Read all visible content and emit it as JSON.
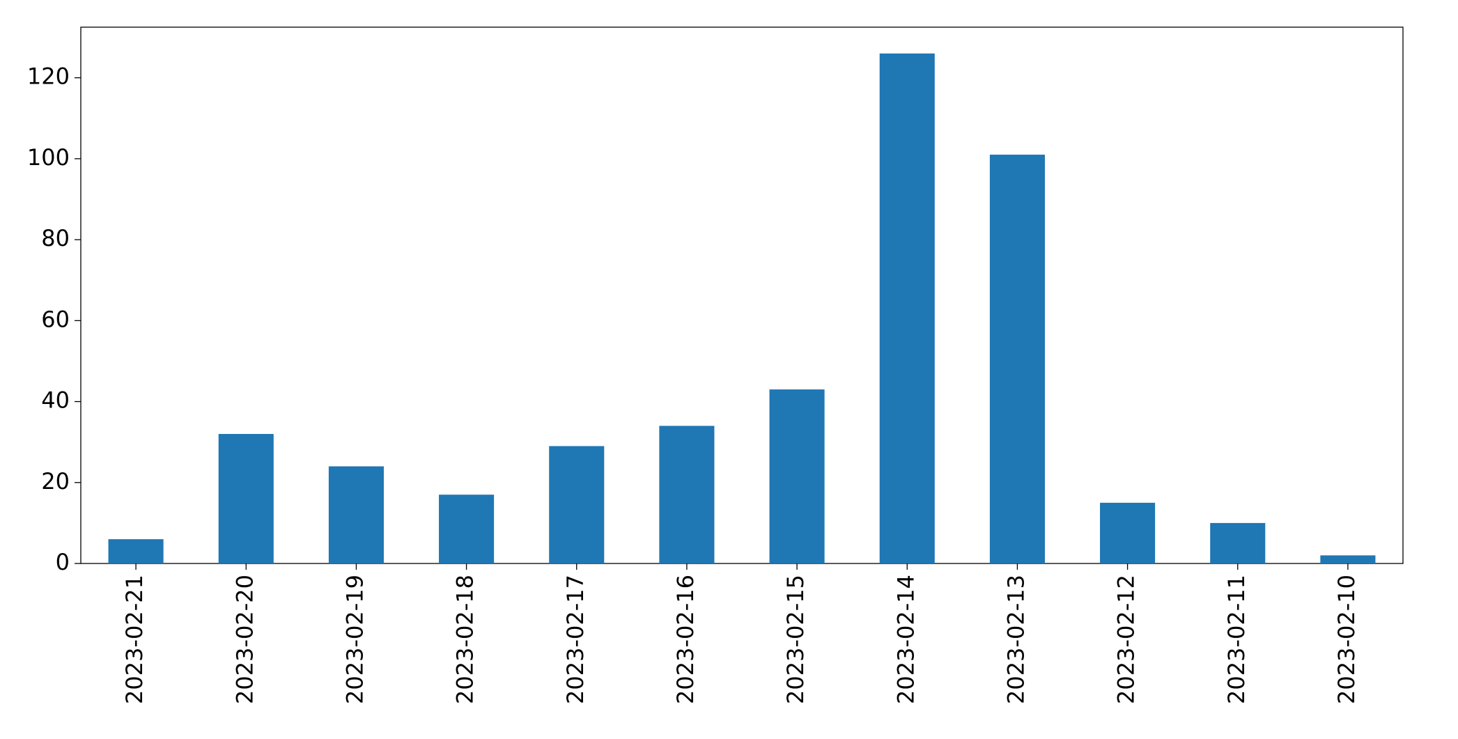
{
  "chart_data": {
    "type": "bar",
    "categories": [
      "2023-02-21",
      "2023-02-20",
      "2023-02-19",
      "2023-02-18",
      "2023-02-17",
      "2023-02-16",
      "2023-02-15",
      "2023-02-14",
      "2023-02-13",
      "2023-02-12",
      "2023-02-11",
      "2023-02-10"
    ],
    "values": [
      6,
      32,
      24,
      17,
      29,
      34,
      43,
      126,
      101,
      15,
      10,
      2
    ],
    "color": "#1f77b4",
    "ylim": [
      0,
      132.5
    ],
    "yticks": [
      0,
      20,
      40,
      60,
      80,
      100,
      120
    ],
    "grid": false
  }
}
